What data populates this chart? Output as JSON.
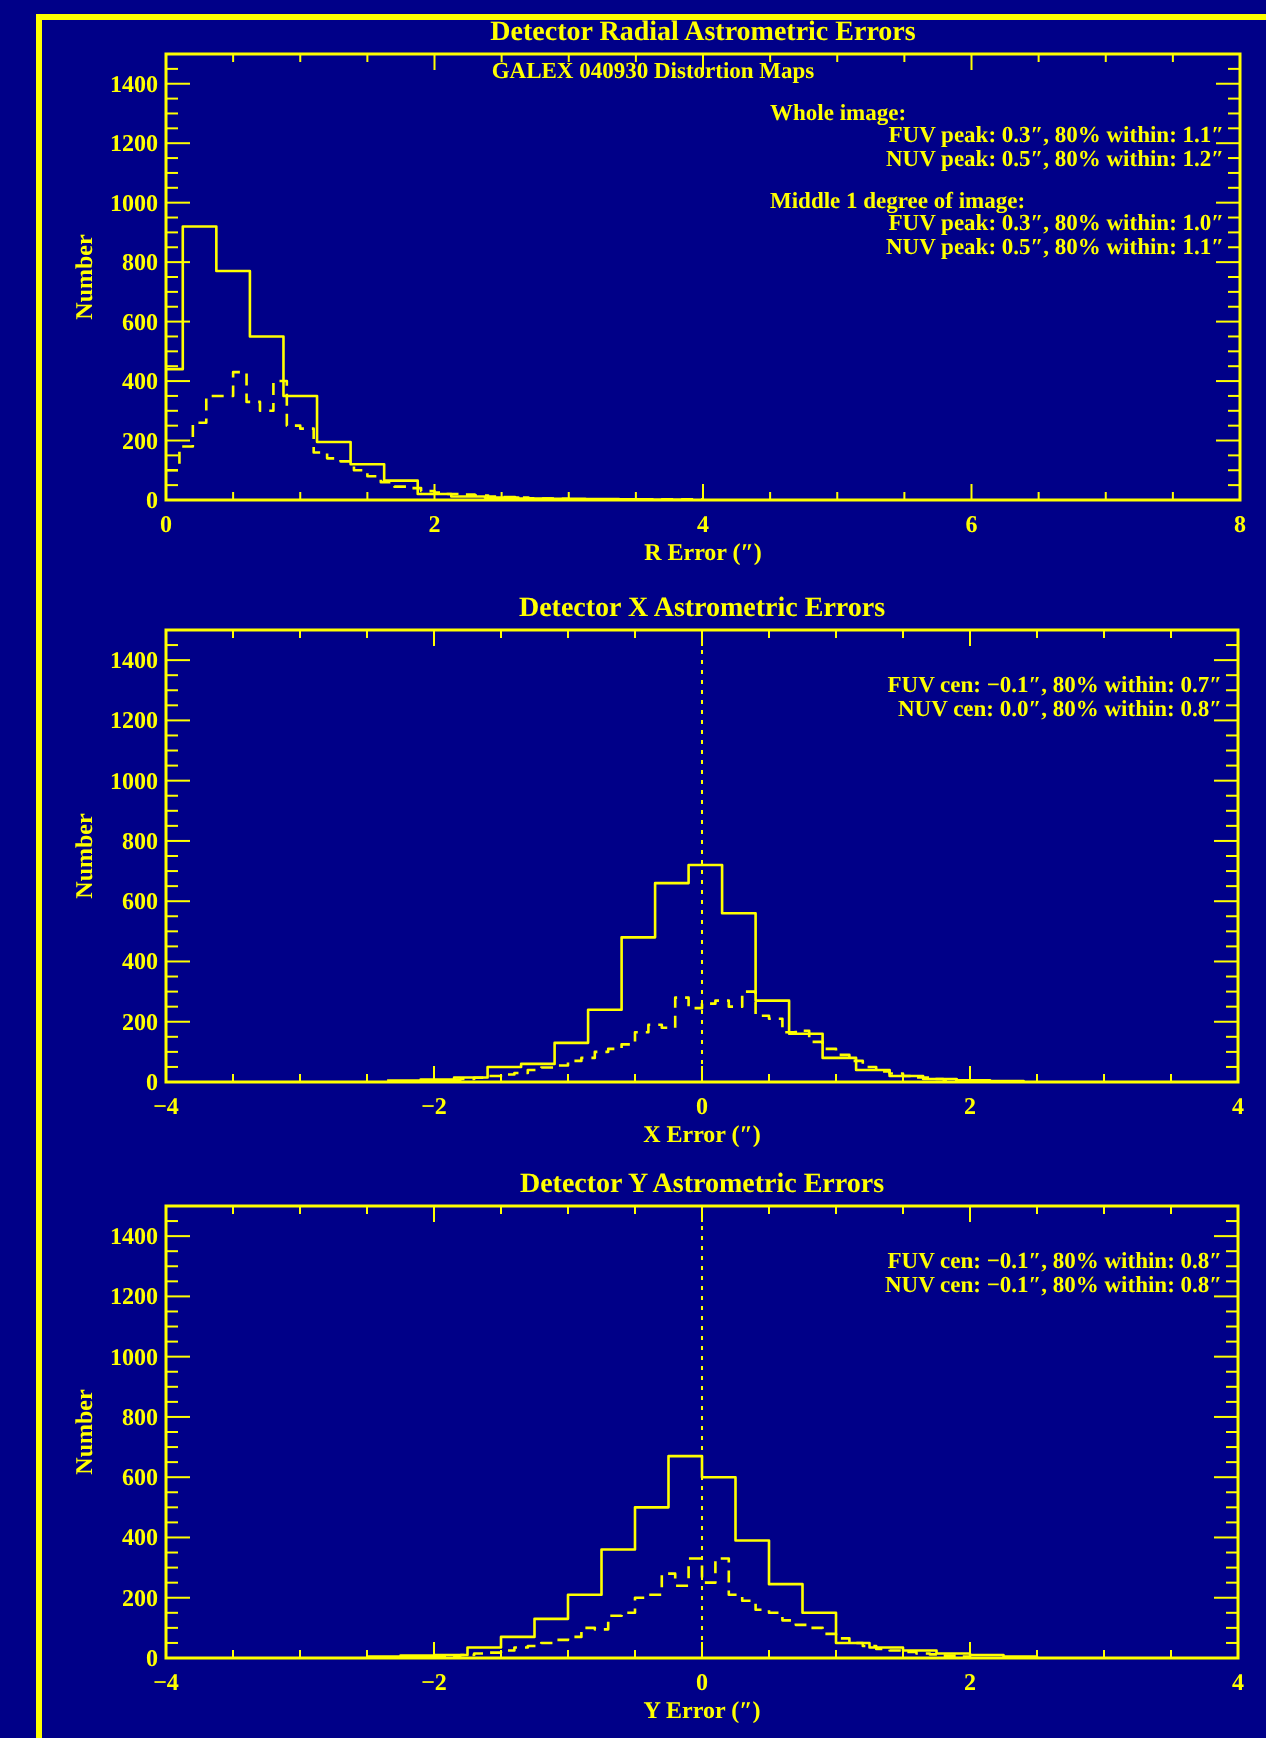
{
  "chart_data": [
    {
      "type": "step",
      "title": "Detector Radial Astrometric Errors",
      "xlabel": "R Error (″)",
      "ylabel": "Number",
      "xlim": [
        0,
        8
      ],
      "ylim": [
        0,
        1500
      ],
      "xticks": [
        0,
        {
          "value": 0.5,
          "label": null
        },
        {
          "value": 1,
          "label": null
        },
        {
          "value": 1.5,
          "label": null
        },
        2,
        {
          "value": 2.5,
          "label": null
        },
        {
          "value": 3,
          "label": null
        },
        {
          "value": 3.5,
          "label": null
        },
        4,
        {
          "value": 4.5,
          "label": null
        },
        {
          "value": 5,
          "label": null
        },
        {
          "value": 5.5,
          "label": null
        },
        6,
        {
          "value": 6.5,
          "label": null
        },
        {
          "value": 7,
          "label": null
        },
        {
          "value": 7.5,
          "label": null
        },
        8
      ],
      "yticks": [
        0,
        {
          "value": 50,
          "label": null
        },
        {
          "value": 100,
          "label": null
        },
        {
          "value": 150,
          "label": null
        },
        200,
        {
          "value": 250,
          "label": null
        },
        {
          "value": 300,
          "label": null
        },
        {
          "value": 350,
          "label": null
        },
        400,
        {
          "value": 450,
          "label": null
        },
        {
          "value": 500,
          "label": null
        },
        {
          "value": 550,
          "label": null
        },
        600,
        {
          "value": 650,
          "label": null
        },
        {
          "value": 700,
          "label": null
        },
        {
          "value": 750,
          "label": null
        },
        800,
        {
          "value": 850,
          "label": null
        },
        {
          "value": 900,
          "label": null
        },
        {
          "value": 950,
          "label": null
        },
        1000,
        {
          "value": 1050,
          "label": null
        },
        {
          "value": 1100,
          "label": null
        },
        {
          "value": 1150,
          "label": null
        },
        1200,
        {
          "value": 1250,
          "label": null
        },
        {
          "value": 1300,
          "label": null
        },
        {
          "value": 1350,
          "label": null
        },
        1400,
        {
          "value": 1450,
          "label": null
        }
      ],
      "series": [
        {
          "color": "#ffff00",
          "line_style": "solid",
          "x": [
            0,
            0.125,
            0.375,
            0.625,
            0.875,
            1.125,
            1.375,
            1.625,
            1.875,
            2.125,
            2.375,
            2.625,
            2.875,
            3.125,
            3.375,
            3.625,
            3.875
          ],
          "values": [
            440,
            920,
            770,
            550,
            350,
            195,
            120,
            65,
            20,
            12,
            8,
            5,
            4,
            3,
            2,
            1,
            0
          ]
        },
        {
          "color": "#ffff00",
          "line_style": "dashed",
          "x": [
            0,
            0.1,
            0.2,
            0.3,
            0.4,
            0.5,
            0.6,
            0.7,
            0.8,
            0.9,
            1.0,
            1.1,
            1.2,
            1.3,
            1.4,
            1.5,
            1.6,
            1.7,
            1.8,
            1.9,
            2.0,
            2.1,
            2.2,
            2.3,
            2.4,
            2.5,
            2.6,
            2.7,
            2.8,
            2.9,
            3.0,
            4.0
          ],
          "values": [
            100,
            180,
            260,
            350,
            350,
            430,
            330,
            300,
            400,
            250,
            240,
            160,
            140,
            130,
            100,
            80,
            60,
            45,
            40,
            30,
            25,
            20,
            18,
            15,
            12,
            10,
            8,
            6,
            5,
            4,
            2,
            0
          ]
        }
      ],
      "annotations": [
        "GALEX 040930 Distortion Maps",
        "Whole image:",
        "FUV peak: 0.3″, 80% within: 1.1″",
        "NUV peak: 0.5″, 80% within: 1.2″",
        "Middle 1 degree of image:",
        "FUV peak: 0.3″, 80% within: 1.0″",
        "NUV peak: 0.5″, 80% within: 1.1″"
      ]
    },
    {
      "type": "step",
      "title": "Detector X Astrometric Errors",
      "xlabel": "X Error (″)",
      "ylabel": "Number",
      "xlim": [
        -4,
        4
      ],
      "ylim": [
        0,
        1500
      ],
      "xticks": [
        {
          "value": -4,
          "label": "−4"
        },
        {
          "value": -3.5,
          "label": null
        },
        {
          "value": -3,
          "label": null
        },
        {
          "value": -2.5,
          "label": null
        },
        {
          "value": -2,
          "label": "−2"
        },
        {
          "value": -1.5,
          "label": null
        },
        {
          "value": -1,
          "label": null
        },
        {
          "value": -0.5,
          "label": null
        },
        0,
        {
          "value": 0.5,
          "label": null
        },
        {
          "value": 1,
          "label": null
        },
        {
          "value": 1.5,
          "label": null
        },
        2,
        {
          "value": 2.5,
          "label": null
        },
        {
          "value": 3,
          "label": null
        },
        {
          "value": 3.5,
          "label": null
        },
        4
      ],
      "yticks": [
        0,
        {
          "value": 50,
          "label": null
        },
        {
          "value": 100,
          "label": null
        },
        {
          "value": 150,
          "label": null
        },
        200,
        {
          "value": 250,
          "label": null
        },
        {
          "value": 300,
          "label": null
        },
        {
          "value": 350,
          "label": null
        },
        400,
        {
          "value": 450,
          "label": null
        },
        {
          "value": 500,
          "label": null
        },
        {
          "value": 550,
          "label": null
        },
        600,
        {
          "value": 650,
          "label": null
        },
        {
          "value": 700,
          "label": null
        },
        {
          "value": 750,
          "label": null
        },
        800,
        {
          "value": 850,
          "label": null
        },
        {
          "value": 900,
          "label": null
        },
        {
          "value": 950,
          "label": null
        },
        1000,
        {
          "value": 1050,
          "label": null
        },
        {
          "value": 1100,
          "label": null
        },
        {
          "value": 1150,
          "label": null
        },
        1200,
        {
          "value": 1250,
          "label": null
        },
        {
          "value": 1300,
          "label": null
        },
        {
          "value": 1350,
          "label": null
        },
        1400,
        {
          "value": 1450,
          "label": null
        }
      ],
      "series": [
        {
          "color": "#ffff00",
          "line_style": "solid",
          "x": [
            -2.35,
            -2.1,
            -1.85,
            -1.6,
            -1.35,
            -1.1,
            -0.85,
            -0.6,
            -0.35,
            -0.1,
            0.15,
            0.4,
            0.65,
            0.9,
            1.15,
            1.4,
            1.65,
            1.9,
            2.15,
            2.4
          ],
          "values": [
            5,
            8,
            15,
            50,
            60,
            130,
            240,
            480,
            660,
            720,
            560,
            270,
            160,
            80,
            40,
            20,
            10,
            6,
            3,
            0
          ]
        },
        {
          "color": "#ffff00",
          "line_style": "dashed",
          "x": [
            -2.0,
            -1.9,
            -1.8,
            -1.7,
            -1.6,
            -1.5,
            -1.4,
            -1.3,
            -1.2,
            -1.1,
            -1.0,
            -0.9,
            -0.8,
            -0.7,
            -0.6,
            -0.5,
            -0.4,
            -0.3,
            -0.2,
            -0.1,
            0.0,
            0.1,
            0.2,
            0.3,
            0.4,
            0.5,
            0.6,
            0.7,
            0.8,
            0.9,
            1.0,
            1.1,
            1.2,
            1.3,
            1.4,
            1.5,
            1.6,
            1.7,
            1.8,
            1.9,
            2.0
          ],
          "values": [
            5,
            8,
            10,
            14,
            20,
            25,
            30,
            40,
            48,
            55,
            70,
            80,
            100,
            110,
            125,
            165,
            190,
            180,
            280,
            245,
            260,
            270,
            250,
            300,
            220,
            210,
            165,
            170,
            133,
            110,
            90,
            70,
            50,
            35,
            28,
            20,
            15,
            10,
            8,
            5,
            0
          ]
        }
      ],
      "ref_lines": [
        {
          "axis": "x",
          "value": 0,
          "line_style": "dotted",
          "color": "#ffff00"
        }
      ],
      "annotations": [
        "FUV cen: −0.1″, 80% within: 0.7″",
        "NUV cen: 0.0″, 80% within: 0.8″"
      ]
    },
    {
      "type": "step",
      "title": "Detector Y Astrometric Errors",
      "xlabel": "Y Error (″)",
      "ylabel": "Number",
      "xlim": [
        -4,
        4
      ],
      "ylim": [
        0,
        1500
      ],
      "xticks": [
        {
          "value": -4,
          "label": "−4"
        },
        {
          "value": -3.5,
          "label": null
        },
        {
          "value": -3,
          "label": null
        },
        {
          "value": -2.5,
          "label": null
        },
        {
          "value": -2,
          "label": "−2"
        },
        {
          "value": -1.5,
          "label": null
        },
        {
          "value": -1,
          "label": null
        },
        {
          "value": -0.5,
          "label": null
        },
        0,
        {
          "value": 0.5,
          "label": null
        },
        {
          "value": 1,
          "label": null
        },
        {
          "value": 1.5,
          "label": null
        },
        2,
        {
          "value": 2.5,
          "label": null
        },
        {
          "value": 3,
          "label": null
        },
        {
          "value": 3.5,
          "label": null
        },
        4
      ],
      "yticks": [
        0,
        {
          "value": 50,
          "label": null
        },
        {
          "value": 100,
          "label": null
        },
        {
          "value": 150,
          "label": null
        },
        200,
        {
          "value": 250,
          "label": null
        },
        {
          "value": 300,
          "label": null
        },
        {
          "value": 350,
          "label": null
        },
        400,
        {
          "value": 450,
          "label": null
        },
        {
          "value": 500,
          "label": null
        },
        {
          "value": 550,
          "label": null
        },
        600,
        {
          "value": 650,
          "label": null
        },
        {
          "value": 700,
          "label": null
        },
        {
          "value": 750,
          "label": null
        },
        800,
        {
          "value": 850,
          "label": null
        },
        {
          "value": 900,
          "label": null
        },
        {
          "value": 950,
          "label": null
        },
        1000,
        {
          "value": 1050,
          "label": null
        },
        {
          "value": 1100,
          "label": null
        },
        {
          "value": 1150,
          "label": null
        },
        1200,
        {
          "value": 1250,
          "label": null
        },
        {
          "value": 1300,
          "label": null
        },
        {
          "value": 1350,
          "label": null
        },
        1400,
        {
          "value": 1450,
          "label": null
        }
      ],
      "series": [
        {
          "color": "#ffff00",
          "line_style": "solid",
          "x": [
            -2.5,
            -2.25,
            -2.0,
            -1.75,
            -1.5,
            -1.25,
            -1.0,
            -0.75,
            -0.5,
            -0.25,
            0,
            0.25,
            0.5,
            0.75,
            1.0,
            1.25,
            1.5,
            1.75,
            2.0,
            2.25,
            2.5
          ],
          "values": [
            5,
            8,
            10,
            35,
            70,
            130,
            210,
            360,
            500,
            670,
            600,
            390,
            245,
            150,
            50,
            35,
            25,
            15,
            10,
            5,
            0
          ]
        },
        {
          "color": "#ffff00",
          "line_style": "dashed",
          "x": [
            -2.0,
            -1.9,
            -1.8,
            -1.7,
            -1.6,
            -1.5,
            -1.4,
            -1.3,
            -1.2,
            -1.1,
            -1.0,
            -0.9,
            -0.8,
            -0.7,
            -0.6,
            -0.5,
            -0.4,
            -0.3,
            -0.2,
            -0.1,
            0.0,
            0.1,
            0.2,
            0.3,
            0.4,
            0.5,
            0.6,
            0.7,
            0.8,
            0.9,
            1.0,
            1.1,
            1.2,
            1.3,
            1.4,
            1.5,
            1.6,
            1.7,
            1.8,
            1.9,
            2.0
          ],
          "values": [
            5,
            8,
            10,
            15,
            18,
            25,
            35,
            40,
            50,
            60,
            70,
            100,
            95,
            140,
            150,
            200,
            210,
            280,
            240,
            330,
            250,
            330,
            210,
            190,
            160,
            150,
            125,
            110,
            100,
            80,
            65,
            50,
            40,
            30,
            25,
            20,
            15,
            12,
            8,
            5,
            0
          ]
        }
      ],
      "ref_lines": [
        {
          "axis": "x",
          "value": 0,
          "line_style": "dotted",
          "color": "#ffff00"
        }
      ],
      "annotations": [
        "FUV cen: −0.1″, 80% within: 0.8″",
        "NUV cen: −0.1″, 80% within: 0.8″"
      ]
    }
  ]
}
